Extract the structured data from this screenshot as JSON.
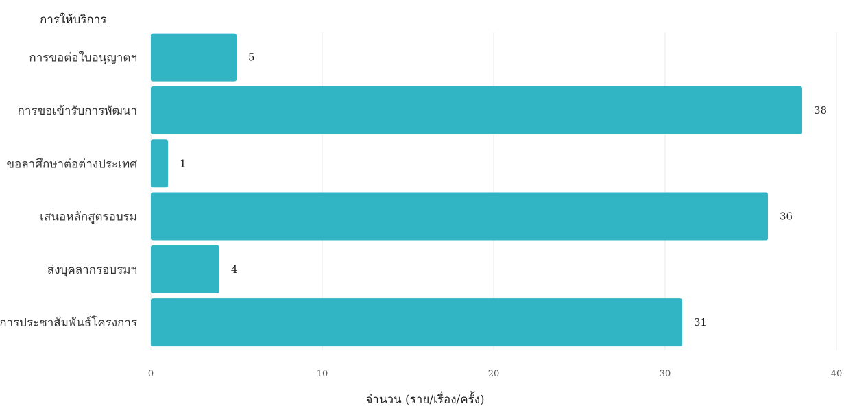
{
  "chart_data": {
    "type": "bar",
    "orientation": "horizontal",
    "ytitle": "การให้บริการ",
    "xlabel": "จำนวน (ราย/เรื่อง/ครั้ง)",
    "categories": [
      "การขอต่อใบอนุญาตฯ",
      "การขอเข้ารับการพัฒนา",
      "ขอลาศึกษาต่อต่างประเทศ",
      "เสนอหลักสูตรอบรม",
      "ส่งบุคลากรอบรมฯ",
      "การประชาสัมพันธ์โครงการ"
    ],
    "values": [
      5,
      38,
      1,
      36,
      4,
      31
    ],
    "xlim": [
      0,
      40
    ],
    "xticks": [
      0,
      10,
      20,
      30,
      40
    ],
    "grid": true,
    "bar_color": "#31b4c4"
  }
}
